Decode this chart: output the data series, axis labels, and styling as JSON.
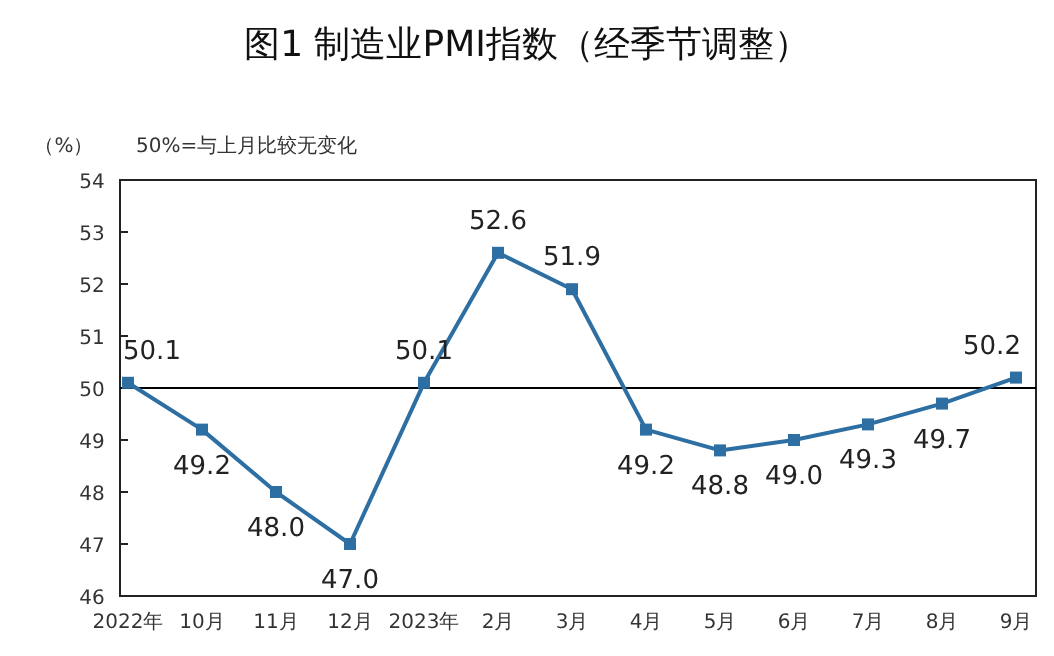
{
  "chart_data": {
    "type": "line",
    "title": "图1 制造业PMI指数（经季节调整）",
    "ylabel": "（%）",
    "annotations": [
      "50%=与上月比较无变化"
    ],
    "categories": [
      "2022年",
      "10月",
      "11月",
      "12月",
      "2023年",
      "2月",
      "3月",
      "4月",
      "5月",
      "6月",
      "7月",
      "8月",
      "9月"
    ],
    "series": [
      {
        "color": "#2e6fa3",
        "values": [
          50.1,
          49.2,
          48.0,
          47.0,
          50.1,
          52.6,
          51.9,
          49.2,
          48.8,
          49.0,
          49.3,
          49.7,
          50.2
        ],
        "value_labels": [
          "50.1",
          "49.2",
          "48.0",
          "47.0",
          "50.1",
          "52.6",
          "51.9",
          "49.2",
          "48.8",
          "49.0",
          "49.3",
          "49.7",
          "50.2"
        ]
      }
    ],
    "ylim": [
      46,
      54
    ],
    "yticks": [
      46,
      47,
      48,
      49,
      50,
      51,
      52,
      53,
      54
    ],
    "ref_lines": [
      {
        "axis": "y",
        "value": 50,
        "color": "#000000"
      }
    ],
    "marker": "square",
    "line_style": "solid"
  }
}
